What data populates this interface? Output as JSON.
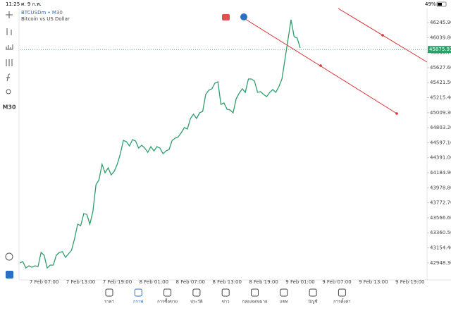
{
  "status_bar": {
    "time": "11:25",
    "date": "ศ. 9 ก.พ.",
    "battery": "49%"
  },
  "toolbar": {
    "timeframe": "M30"
  },
  "chart_data": {
    "type": "line",
    "title": "BTCUSDm • M30",
    "subtitle": "Bitcoin vs US Dollar",
    "color": "#2e9e6b",
    "x": [
      3,
      3.5,
      4,
      4.5,
      5,
      5.5,
      6,
      6.5,
      7,
      7.5,
      8,
      8.5,
      9,
      9.5,
      10,
      10.5,
      11,
      11.5,
      12,
      12.5,
      13,
      13.5,
      14,
      14.5,
      15,
      15.5,
      16,
      16.5,
      17,
      17.5,
      18,
      18.5,
      19,
      19.5,
      20,
      20.5,
      21,
      21.5,
      22,
      22.5,
      23,
      23.5,
      24,
      24.5,
      25,
      25.5,
      26,
      26.5,
      27,
      27.5,
      28,
      28.5,
      29,
      29.5,
      30,
      30.5,
      31,
      31.5,
      32,
      32.5,
      33,
      33.5,
      34,
      34.5,
      35,
      35.5,
      36,
      36.5,
      37,
      37.5,
      38,
      38.5,
      39,
      39.5,
      40,
      40.5,
      41,
      41.5,
      42,
      42.5,
      43,
      43.5,
      44,
      44.5,
      45,
      45.5,
      46,
      46.5,
      47,
      47.5,
      48,
      48.5,
      49
    ],
    "values": [
      42946.4,
      42965.7,
      42878.7,
      42907.7,
      42888.3,
      42907.7,
      42898.0,
      43091.5,
      43052.8,
      42878.7,
      42917.4,
      42917.4,
      43052.8,
      43091.5,
      43101.2,
      43023.8,
      43072.2,
      43120.6,
      43285.0,
      43478.6,
      43459.2,
      43623.7,
      43614.0,
      43478.6,
      43652.7,
      44020.4,
      44088.2,
      44301.0,
      44184.9,
      44252.6,
      44155.9,
      44204.3,
      44301.0,
      44446.2,
      44630.0,
      44610.7,
      44552.6,
      44639.7,
      44620.3,
      44523.6,
      44562.3,
      44523.6,
      44465.5,
      44542.9,
      44484.9,
      44542.9,
      44523.6,
      44446.2,
      44484.9,
      44504.2,
      44630.0,
      44659.0,
      44678.4,
      44736.4,
      44804.2,
      44784.8,
      44930.0,
      44988.0,
      44930.0,
      45007.4,
      45026.7,
      45259.0,
      45317.0,
      45336.4,
      45413.8,
      45433.1,
      45123.5,
      45142.8,
      45055.8,
      45046.1,
      45007.4,
      45200.9,
      45278.3,
      45336.4,
      45288.0,
      45471.8,
      45471.8,
      45442.8,
      45288.0,
      45297.7,
      45259.0,
      45229.9,
      45288.0,
      45326.7,
      45288.0,
      45365.4,
      45471.8,
      45742.7,
      46013.7,
      46284.6,
      46052.4,
      46033.0,
      45897.6
    ],
    "current_price": 45875.93,
    "xlim": [
      3,
      69.8
    ],
    "ylim": [
      42733.5,
      46439.4
    ],
    "xticks": [
      {
        "value": 7,
        "label": "7 Feb 07:00"
      },
      {
        "value": 13,
        "label": "7 Feb 13:00"
      },
      {
        "value": 19,
        "label": "7 Feb 19:00"
      },
      {
        "value": 25,
        "label": "8 Feb 01:00"
      },
      {
        "value": 31,
        "label": "8 Feb 07:00"
      },
      {
        "value": 37,
        "label": "8 Feb 13:00"
      },
      {
        "value": 43,
        "label": "8 Feb 19:00"
      },
      {
        "value": 49,
        "label": "9 Feb 01:00"
      },
      {
        "value": 55,
        "label": "9 Feb 07:00"
      },
      {
        "value": 61,
        "label": "9 Feb 13:00"
      },
      {
        "value": 67,
        "label": "9 Feb 19:00"
      }
    ],
    "yticks": [
      {
        "value": 46245.9,
        "label": "46245.90"
      },
      {
        "value": 46039.8,
        "label": "46039.80"
      },
      {
        "value": 45833.7,
        "label": "45833.70"
      },
      {
        "value": 45627.6,
        "label": "45627.60"
      },
      {
        "value": 45421.5,
        "label": "45421.50"
      },
      {
        "value": 45215.4,
        "label": "45215.40"
      },
      {
        "value": 45009.3,
        "label": "45009.30"
      },
      {
        "value": 44803.2,
        "label": "44803.20"
      },
      {
        "value": 44597.1,
        "label": "44597.10"
      },
      {
        "value": 44391,
        "label": "44391.00"
      },
      {
        "value": 44184.9,
        "label": "44184.90"
      },
      {
        "value": 43978.8,
        "label": "43978.80"
      },
      {
        "value": 43772.7,
        "label": "43772.70"
      },
      {
        "value": 43566.6,
        "label": "43566.60"
      },
      {
        "value": 43360.5,
        "label": "43360.50"
      },
      {
        "value": 43154.4,
        "label": "43154.40"
      },
      {
        "value": 42948.3,
        "label": "42948.30"
      }
    ]
  },
  "nav": {
    "items": [
      "ราคา",
      "กราฟ",
      "การซื้อขาย",
      "ประวัติ",
      "ข่าว",
      "กล่องจดหมาย",
      "แชท",
      "บัญชี",
      "การตั้งค่า"
    ]
  }
}
